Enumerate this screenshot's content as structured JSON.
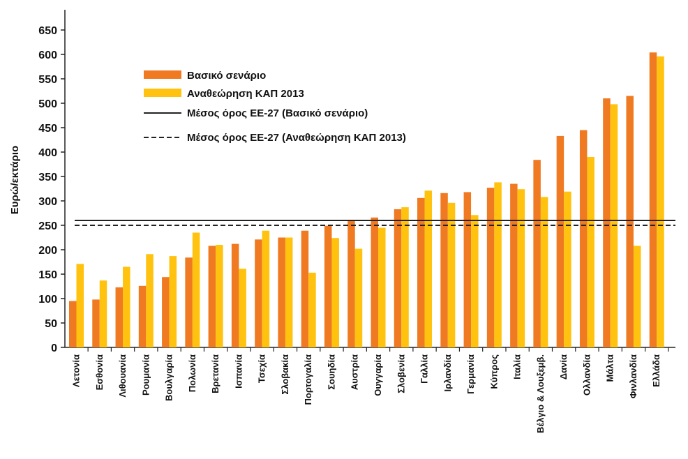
{
  "chart_data": {
    "type": "bar",
    "ylabel": "Ευρώ/εκτάριο",
    "xlabel": "",
    "ylim": [
      0,
      690
    ],
    "yticks": [
      0,
      50,
      100,
      150,
      200,
      250,
      300,
      350,
      400,
      450,
      500,
      550,
      600,
      650
    ],
    "grid": false,
    "legend_position": "top-left",
    "categories": [
      "Λετονία",
      "Εσθονία",
      "Λιθουανία",
      "Ρουμανία",
      "Βουλγαρία",
      "Πολωνία",
      "Βρετανία",
      "Ισπανία",
      "Τσεχία",
      "Σλοβακία",
      "Πορτογαλία",
      "Σουηδία",
      "Αυστρία",
      "Ουγγαρία",
      "Σλοβενία",
      "Γαλλία",
      "Ιρλανδία",
      "Γερμανία",
      "Κύπρος",
      "Ιταλία",
      "Βέλγιο & Λουξεμβ.",
      "Δανία",
      "Ολλανδία",
      "Μάλτα",
      "Φινλανδία",
      "Ελλάδα"
    ],
    "series": [
      {
        "name": "Βασικό σενάριο",
        "color": "#F07A22",
        "values": [
          95,
          98,
          123,
          126,
          144,
          184,
          208,
          212,
          221,
          225,
          239,
          249,
          261,
          266,
          283,
          306,
          316,
          318,
          327,
          335,
          384,
          433,
          445,
          510,
          515,
          604
        ]
      },
      {
        "name": "Αναθεώρηση ΚΑΠ 2013",
        "color": "#FFC20E",
        "values": [
          171,
          137,
          165,
          191,
          187,
          235,
          210,
          161,
          239,
          225,
          153,
          224,
          202,
          245,
          287,
          321,
          296,
          271,
          338,
          324,
          308,
          319,
          390,
          498,
          208,
          596
        ]
      }
    ],
    "reference_lines": [
      {
        "name": "Μέσος όρος ΕΕ-27 (Βασικό σενάριο)",
        "value": 260,
        "style": "solid",
        "color": "#222222"
      },
      {
        "name": "Μέσος όρος ΕΕ-27 (Αναθεώρηση ΚΑΠ 2013)",
        "value": 250,
        "style": "dashed",
        "color": "#222222"
      }
    ]
  }
}
